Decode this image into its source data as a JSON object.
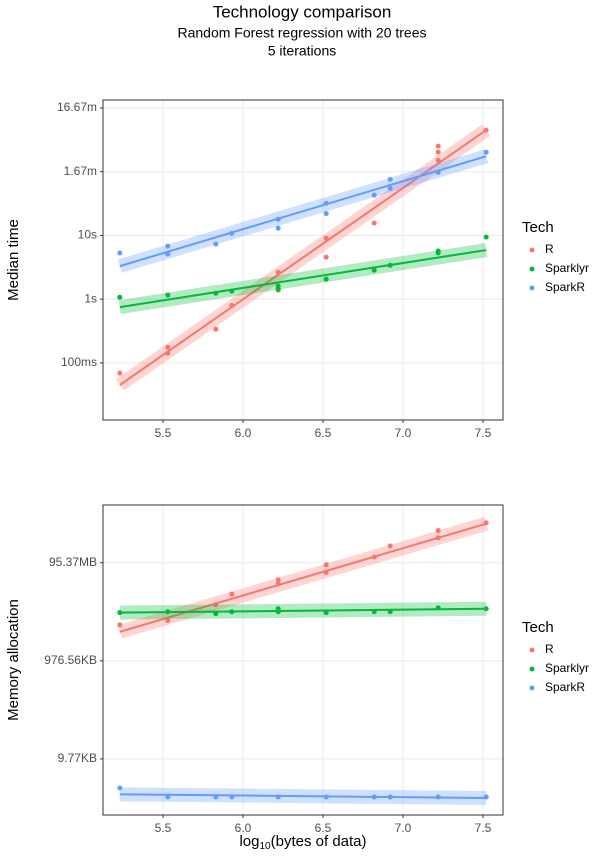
{
  "title": "Technology comparison",
  "subtitle": [
    "Random Forest regression with 20 trees",
    "5 iterations"
  ],
  "xlabel": [
    "log",
    "10",
    "(bytes of data)"
  ],
  "chart_data": [
    {
      "type": "scatter",
      "ylabel": "Median time",
      "yscale": "log",
      "grid": true,
      "legend_title": "Tech",
      "legend": "right",
      "xlim": [
        5.125,
        7.625
      ],
      "xticks": [
        5.5,
        {
          "value": 6,
          "label": "6.0"
        },
        6.5,
        {
          "value": 7,
          "label": "7.0"
        },
        7.5
      ],
      "ylim": [
        0.0127,
        1336
      ],
      "yticks": [
        {
          "value": 1000,
          "label": "16.67m"
        },
        {
          "value": 100,
          "label": "1.67m"
        },
        {
          "value": 10,
          "label": "10s"
        },
        {
          "value": 1,
          "label": "1s"
        },
        {
          "value": 0.1,
          "label": "100ms"
        }
      ],
      "series": [
        {
          "name": "R",
          "color": "#F8766D",
          "x": [
            5.23,
            5.53,
            5.53,
            5.83,
            5.93,
            6.22,
            6.22,
            6.52,
            6.52,
            6.82,
            7.22,
            7.22,
            7.22,
            7.52
          ],
          "values": [
            0.069,
            0.176,
            0.142,
            0.338,
            0.8,
            2.65,
            1.38,
            9.0,
            4.56,
            15.6,
            252,
            203,
            151,
            450
          ],
          "trend": [
            0.045,
            450
          ]
        },
        {
          "name": "Sparklyr",
          "color": "#00BA38",
          "x": [
            5.23,
            5.53,
            5.83,
            5.93,
            6.22,
            6.22,
            6.52,
            6.82,
            6.92,
            7.22,
            7.22,
            7.52
          ],
          "values": [
            1.07,
            1.16,
            1.24,
            1.34,
            1.6,
            1.43,
            2.06,
            2.85,
            3.4,
            5.7,
            5.3,
            9.4
          ],
          "trend": [
            0.75,
            5.9
          ]
        },
        {
          "name": "SparkR",
          "color": "#619CFF",
          "x": [
            5.23,
            5.53,
            5.53,
            5.83,
            5.93,
            6.22,
            6.22,
            6.52,
            6.52,
            6.82,
            6.92,
            6.92,
            7.22,
            7.52
          ],
          "values": [
            5.3,
            6.8,
            5.1,
            7.3,
            10.8,
            18,
            13,
            32,
            22,
            43,
            76,
            55,
            98,
            202
          ],
          "trend": [
            3.3,
            175
          ]
        }
      ]
    },
    {
      "type": "scatter",
      "ylabel": "Memory allocation",
      "yscale": "log",
      "grid": true,
      "legend_title": "Tech",
      "legend": "right",
      "xlim": [
        5.125,
        7.625
      ],
      "xticks": [
        5.5,
        {
          "value": 6,
          "label": "6.0"
        },
        6.5,
        {
          "value": 7,
          "label": "7.0"
        },
        7.5
      ],
      "ylim": [
        720,
        1500000000
      ],
      "yticks": [
        {
          "value": 100000000,
          "label": "95.37MB"
        },
        {
          "value": 1000000,
          "label": "976.56KB"
        },
        {
          "value": 10000,
          "label": "9.77KB"
        }
      ],
      "series": [
        {
          "name": "R",
          "color": "#F8766D",
          "x": [
            5.23,
            5.53,
            5.53,
            5.83,
            5.93,
            6.22,
            6.22,
            6.52,
            6.52,
            6.82,
            6.92,
            7.22,
            7.22,
            7.52
          ],
          "values": [
            5400000,
            6600000,
            10000000,
            14000000,
            23000000,
            45000000,
            37000000,
            91000000,
            63000000,
            130000000,
            220000000,
            320000000,
            450000000,
            650000000
          ],
          "trend": [
            3900000,
            625000000
          ]
        },
        {
          "name": "Sparklyr",
          "color": "#00BA38",
          "x": [
            5.23,
            5.53,
            5.83,
            5.93,
            6.22,
            6.22,
            6.52,
            6.82,
            6.92,
            7.22,
            7.52
          ],
          "values": [
            9600000,
            10000000,
            9100000,
            10000000,
            11500000,
            10000000,
            9600000,
            10000000,
            10000000,
            12000000,
            11500000
          ],
          "trend": [
            9600000,
            11500000
          ]
        },
        {
          "name": "SparkR",
          "color": "#619CFF",
          "x": [
            5.23,
            5.53,
            5.83,
            5.93,
            6.22,
            6.52,
            6.82,
            6.92,
            7.22,
            7.52
          ],
          "values": [
            2560,
            1680,
            1680,
            1680,
            1680,
            1680,
            1680,
            1680,
            1680,
            1680
          ],
          "trend": [
            1900,
            1600
          ]
        }
      ]
    }
  ]
}
